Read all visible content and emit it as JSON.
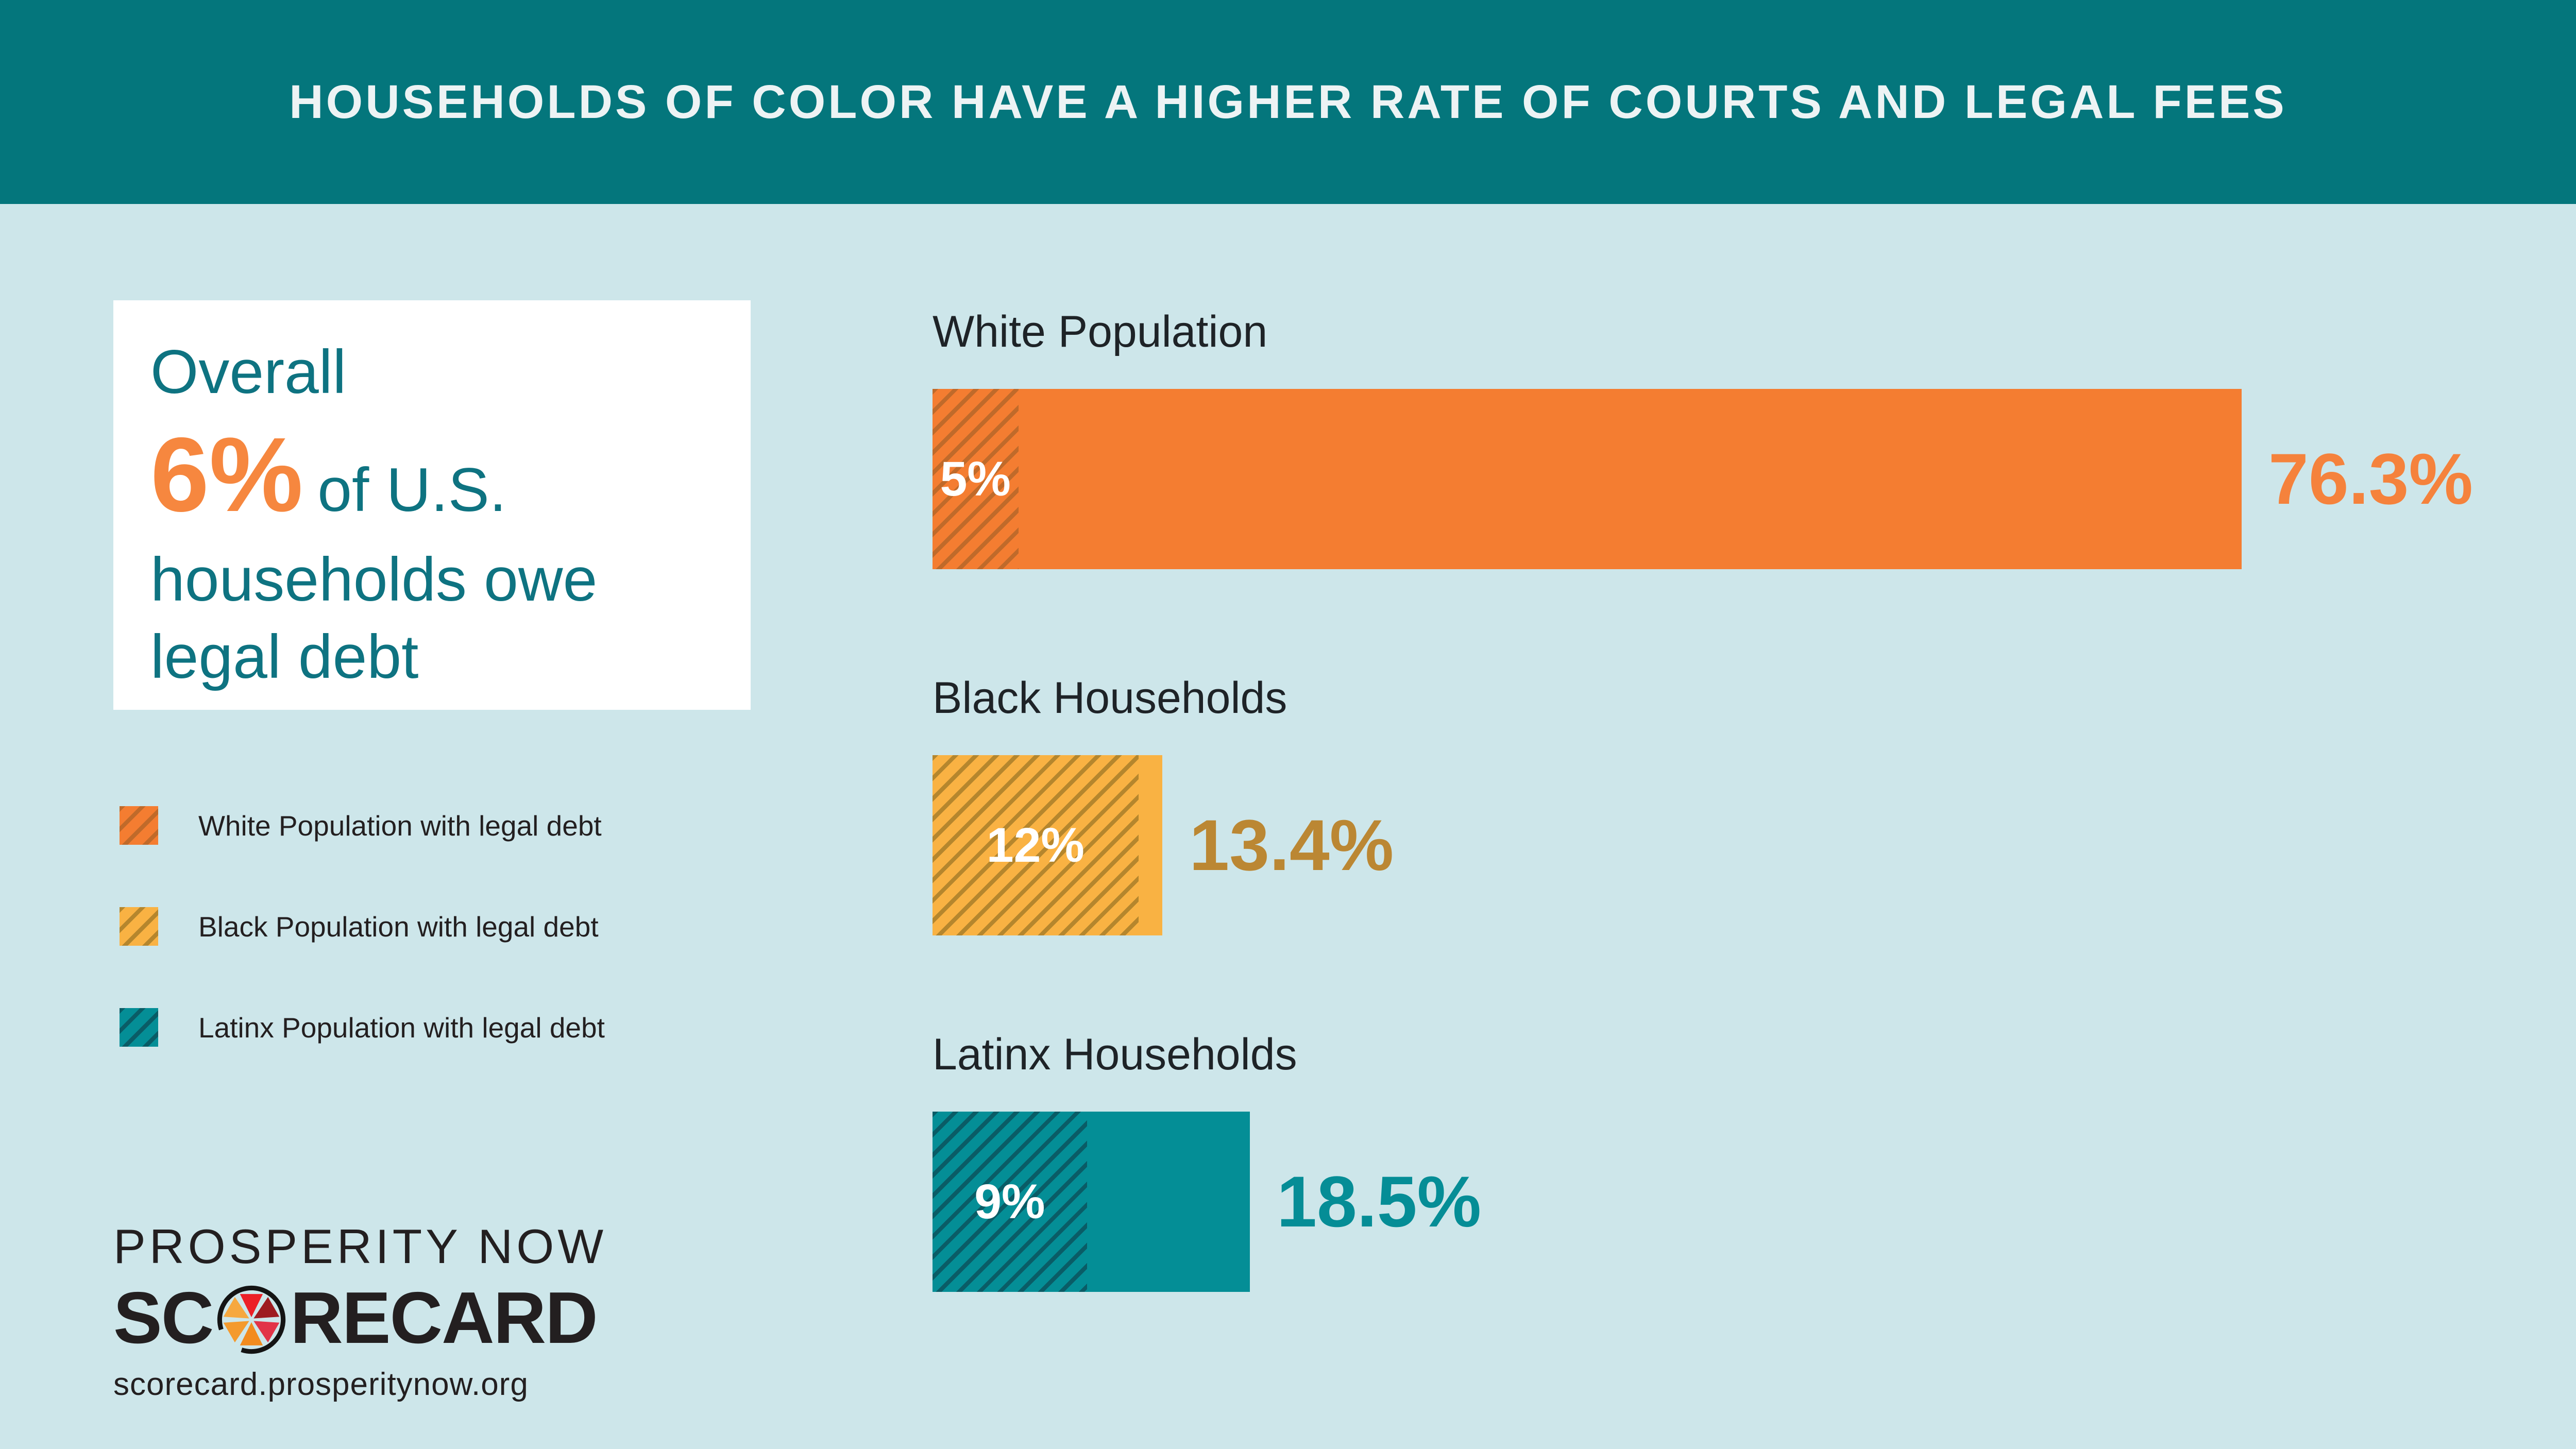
{
  "header": {
    "title": "HOUSEHOLDS OF COLOR HAVE A HIGHER RATE OF COURTS AND LEGAL FEES"
  },
  "card": {
    "line1": "Overall",
    "stat": "6%",
    "stat_suffix": "of U.S.",
    "line3": "households owe",
    "line4": "legal debt"
  },
  "legend": {
    "items": [
      {
        "label": "White Population with legal debt",
        "color": "#f47d31",
        "hatch_color": "#c06a2a"
      },
      {
        "label": "Black Population with legal debt",
        "color": "#f9b243",
        "hatch_color": "#b5862d"
      },
      {
        "label": "Latinx Population with legal debt",
        "color": "#048e96",
        "hatch_color": "#0a5c66"
      }
    ]
  },
  "chart_data": {
    "type": "bar",
    "title": "HOUSEHOLDS OF COLOR HAVE A HIGHER RATE OF COURTS AND LEGAL FEES",
    "subtitle": "Overall 6% of U.S. households owe legal debt",
    "unit": "%",
    "orientation": "horizontal",
    "xlim": [
      0,
      80
    ],
    "grid": false,
    "legend_position": "left",
    "rows": [
      {
        "label": "White Population",
        "total": 76.3,
        "total_label": "76.3%",
        "hatched": 5,
        "hatched_label": "5%",
        "color": "#f47d31",
        "hatch_color": "#c06a2a",
        "value_color": "#f5823c"
      },
      {
        "label": "Black Households",
        "total": 13.4,
        "total_label": "13.4%",
        "hatched": 12,
        "hatched_label": "12%",
        "color": "#f9b243",
        "hatch_color": "#b5862d",
        "value_color": "#bb8733"
      },
      {
        "label": "Latinx Households",
        "total": 18.5,
        "total_label": "18.5%",
        "hatched": 9,
        "hatched_label": "9%",
        "color": "#048e96",
        "hatch_color": "#0a5c66",
        "value_color": "#058d96"
      }
    ]
  },
  "logo": {
    "top": "PROSPERITY NOW",
    "word_pre": "SC",
    "word_post": "RECARD",
    "url": "scorecard.prosperitynow.org"
  },
  "colors": {
    "background": "#cde6ea",
    "header_bar": "#04767c",
    "header_text": "#edf3f4",
    "card_text_teal": "#0e7381",
    "accent_orange": "#f6873f",
    "dark_text": "#231f20"
  }
}
